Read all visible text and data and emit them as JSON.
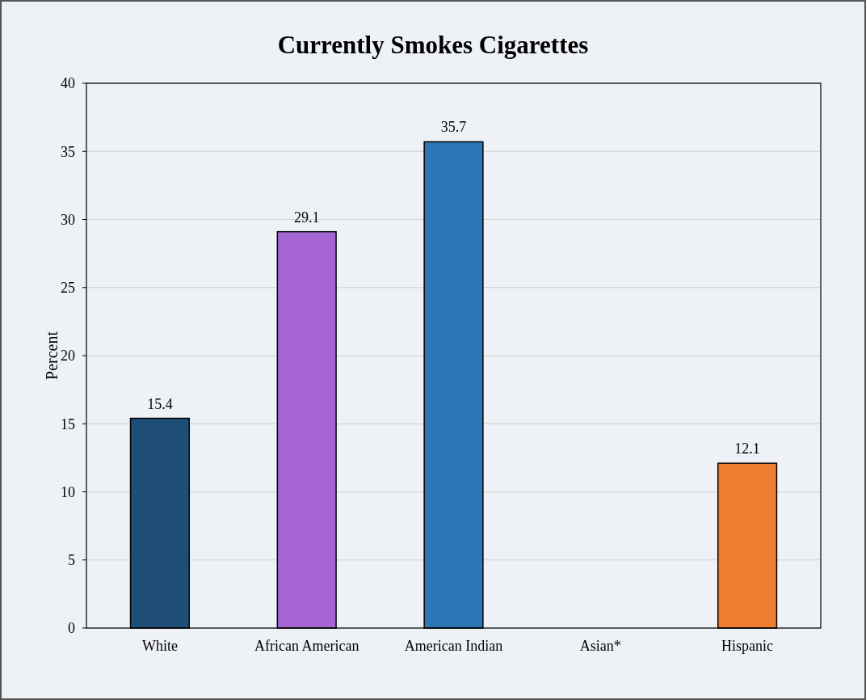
{
  "chart_data": {
    "type": "bar",
    "title": "Currently Smokes Cigarettes",
    "ylabel": "Percent",
    "categories": [
      "White",
      "African American",
      "American Indian",
      "Asian*",
      "Hispanic"
    ],
    "values": [
      15.4,
      29.1,
      35.7,
      null,
      12.1
    ],
    "colors": [
      "#1f4e79",
      "#a566d4",
      "#2e75b6",
      "#7f7f7f",
      "#ed7d31"
    ],
    "ylim": [
      0,
      40
    ],
    "yticks": [
      0,
      5,
      10,
      15,
      20,
      25,
      30,
      35,
      40
    ],
    "grid": "y",
    "data_labels": true
  }
}
